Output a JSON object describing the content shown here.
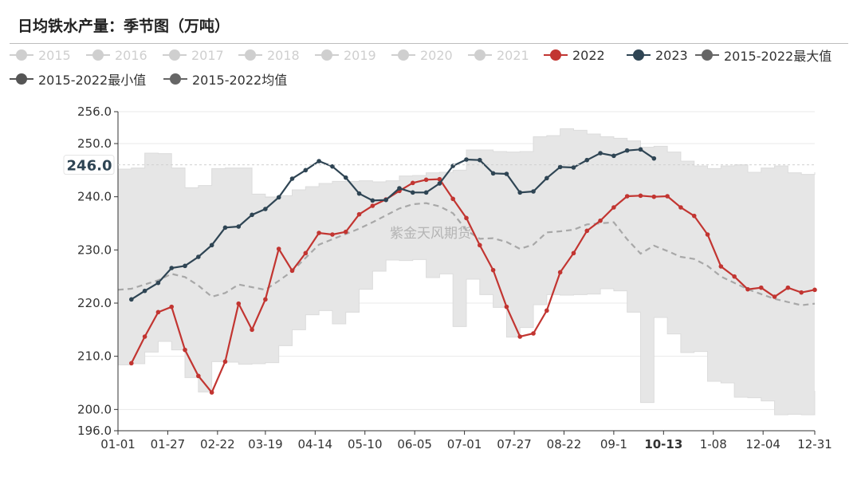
{
  "page": {
    "title": "日均铁水产量：季节图（万吨）"
  },
  "legend": [
    {
      "name": "2015",
      "color": "#cfcfcf",
      "active": false
    },
    {
      "name": "2016",
      "color": "#cfcfcf",
      "active": false
    },
    {
      "name": "2017",
      "color": "#cfcfcf",
      "active": false
    },
    {
      "name": "2018",
      "color": "#cfcfcf",
      "active": false
    },
    {
      "name": "2019",
      "color": "#cfcfcf",
      "active": false
    },
    {
      "name": "2020",
      "color": "#cfcfcf",
      "active": false
    },
    {
      "name": "2021",
      "color": "#cfcfcf",
      "active": false
    },
    {
      "name": "2022",
      "color": "#c23531",
      "active": true
    },
    {
      "name": "2023",
      "color": "#2f4554",
      "active": true
    },
    {
      "name": "2015-2022最大值",
      "color": "#666666",
      "active": true
    },
    {
      "name": "2015-2022最小值",
      "color": "#555555",
      "active": true
    },
    {
      "name": "2015-2022均值",
      "color": "#666666",
      "active": true
    }
  ],
  "watermark": "紫金天风期货",
  "chart_data": {
    "type": "line",
    "title": "日均铁水产量：季节图（万吨）",
    "unit": "万吨",
    "ylim": [
      196.0,
      256.0
    ],
    "y_ticks": [
      "196.0",
      "200.0",
      "210.0",
      "220.0",
      "230.0",
      "240.0",
      "250.0",
      "256.0"
    ],
    "y_pointer": {
      "value": 246.0,
      "label": "246.0"
    },
    "x_ticks": [
      "01-01",
      "01-27",
      "02-22",
      "03-19",
      "04-14",
      "05-10",
      "06-05",
      "07-01",
      "07-27",
      "08-22",
      "09-1",
      "10-13",
      "1-08",
      "12-04",
      "12-31"
    ],
    "x_highlight": "10-13",
    "x_days": [
      1,
      27,
      53,
      78,
      104,
      130,
      156,
      182,
      208,
      234,
      260,
      286,
      312,
      338,
      365
    ],
    "series": [
      {
        "name": "2022",
        "color": "#c23531",
        "x": [
          8,
          15,
          22,
          29,
          36,
          43,
          50,
          57,
          64,
          71,
          78,
          85,
          92,
          99,
          106,
          113,
          120,
          127,
          134,
          141,
          148,
          155,
          162,
          169,
          176,
          183,
          190,
          197,
          204,
          211,
          218,
          225,
          232,
          239,
          246,
          253,
          260,
          267,
          274,
          281,
          288,
          295,
          302,
          309,
          316,
          323,
          330,
          337,
          344,
          351,
          358,
          365
        ],
        "values": [
          208.7,
          213.7,
          218.3,
          219.3,
          211.2,
          206.3,
          203.2,
          209.0,
          219.9,
          215.0,
          220.7,
          230.2,
          226.1,
          229.4,
          233.2,
          232.9,
          233.4,
          236.7,
          238.3,
          239.5,
          241.1,
          242.6,
          243.2,
          243.3,
          239.6,
          236.0,
          230.9,
          226.2,
          219.3,
          213.7,
          214.3,
          218.6,
          225.8,
          229.4,
          233.6,
          235.5,
          238.0,
          240.1,
          240.2,
          240.0,
          240.1,
          238.0,
          236.4,
          232.9,
          226.9,
          225.0,
          222.6,
          222.9,
          221.2,
          222.9,
          222.0,
          222.5
        ]
      },
      {
        "name": "2023",
        "color": "#2f4554",
        "x": [
          8,
          15,
          22,
          29,
          36,
          43,
          50,
          57,
          64,
          71,
          78,
          85,
          92,
          99,
          106,
          113,
          120,
          127,
          134,
          141,
          148,
          155,
          162,
          169,
          176,
          183,
          190,
          197,
          204,
          211,
          218,
          225,
          232,
          239,
          246,
          253,
          260,
          267,
          274,
          281
        ],
        "values": [
          220.7,
          222.3,
          223.8,
          226.6,
          227.0,
          228.7,
          230.9,
          234.2,
          234.4,
          236.6,
          237.7,
          239.9,
          243.4,
          245.0,
          246.7,
          245.7,
          243.6,
          240.6,
          239.3,
          239.4,
          241.6,
          240.8,
          240.8,
          242.5,
          245.8,
          247.0,
          246.9,
          244.4,
          244.3,
          240.8,
          241.0,
          243.5,
          245.6,
          245.5,
          246.9,
          248.2,
          247.7,
          248.7,
          248.9,
          247.2
        ]
      },
      {
        "name": "2015-2022均值",
        "color": "#a8a8a8",
        "style": "dashed",
        "x": [
          1,
          8,
          15,
          22,
          29,
          36,
          43,
          50,
          57,
          64,
          71,
          78,
          85,
          92,
          99,
          106,
          113,
          120,
          127,
          134,
          141,
          148,
          155,
          162,
          169,
          176,
          183,
          190,
          197,
          204,
          211,
          218,
          225,
          232,
          239,
          246,
          253,
          260,
          267,
          274,
          281,
          288,
          295,
          302,
          309,
          316,
          323,
          330,
          337,
          344,
          351,
          358,
          365
        ],
        "values": [
          222.5,
          222.7,
          223.5,
          224.3,
          225.5,
          224.9,
          223.3,
          221.2,
          221.9,
          223.5,
          223.0,
          222.5,
          224.2,
          226.0,
          228.5,
          231.0,
          232.0,
          233.0,
          234.0,
          235.2,
          236.5,
          237.8,
          238.6,
          238.8,
          238.2,
          236.9,
          233.7,
          232.1,
          232.2,
          231.5,
          230.2,
          231.0,
          233.3,
          233.5,
          233.8,
          234.8,
          235.0,
          235.2,
          232.0,
          229.3,
          230.8,
          229.8,
          228.7,
          228.3,
          227.0,
          225.0,
          223.8,
          222.6,
          221.7,
          220.8,
          220.2,
          219.6,
          219.9
        ]
      },
      {
        "name": "2015-2022最大值",
        "color": "#e6e6e6",
        "style": "area-top",
        "x": [
          1,
          8,
          15,
          22,
          29,
          36,
          43,
          50,
          57,
          64,
          71,
          78,
          85,
          92,
          99,
          106,
          113,
          120,
          127,
          134,
          141,
          148,
          155,
          162,
          169,
          176,
          183,
          190,
          197,
          204,
          211,
          218,
          225,
          232,
          239,
          246,
          253,
          260,
          267,
          274,
          281,
          288,
          295,
          302,
          309,
          316,
          323,
          330,
          337,
          344,
          351,
          358,
          365
        ],
        "values": [
          245.2,
          245.4,
          248.2,
          248.1,
          245.4,
          241.7,
          242.1,
          245.3,
          245.4,
          245.4,
          240.5,
          239.9,
          240.2,
          241.3,
          241.9,
          242.5,
          242.9,
          242.9,
          243.0,
          242.8,
          243.0,
          243.9,
          244.0,
          244.5,
          244.6,
          245.0,
          248.8,
          248.8,
          248.5,
          248.4,
          248.5,
          251.3,
          251.5,
          252.8,
          252.5,
          251.8,
          251.3,
          251.0,
          250.5,
          249.3,
          249.5,
          248.4,
          246.7,
          245.8,
          245.3,
          245.8,
          246.0,
          244.6,
          245.4,
          245.8,
          244.5,
          244.2,
          244.6
        ]
      },
      {
        "name": "2015-2022最小值",
        "color": "#e6e6e6",
        "style": "area-bottom",
        "x": [
          1,
          8,
          15,
          22,
          29,
          36,
          43,
          50,
          57,
          64,
          71,
          78,
          85,
          92,
          99,
          106,
          113,
          120,
          127,
          134,
          141,
          148,
          155,
          162,
          169,
          176,
          183,
          190,
          197,
          204,
          211,
          218,
          225,
          232,
          239,
          246,
          253,
          260,
          267,
          274,
          281,
          288,
          295,
          302,
          309,
          316,
          323,
          330,
          337,
          344,
          351,
          358,
          365
        ],
        "values": [
          208.4,
          208.6,
          210.8,
          212.8,
          211.2,
          206.0,
          203.3,
          209.0,
          208.9,
          208.5,
          208.6,
          208.8,
          212.0,
          215.0,
          217.8,
          218.6,
          216.1,
          218.3,
          222.6,
          226.0,
          228.1,
          228.0,
          228.2,
          224.8,
          225.5,
          215.6,
          224.5,
          221.6,
          219.2,
          213.6,
          215.4,
          219.7,
          221.6,
          221.5,
          221.6,
          221.7,
          222.7,
          222.3,
          218.3,
          201.3,
          217.3,
          214.2,
          210.7,
          210.9,
          205.3,
          205.0,
          202.3,
          202.2,
          201.6,
          199.0,
          199.1,
          199.0,
          203.5
        ]
      }
    ]
  }
}
